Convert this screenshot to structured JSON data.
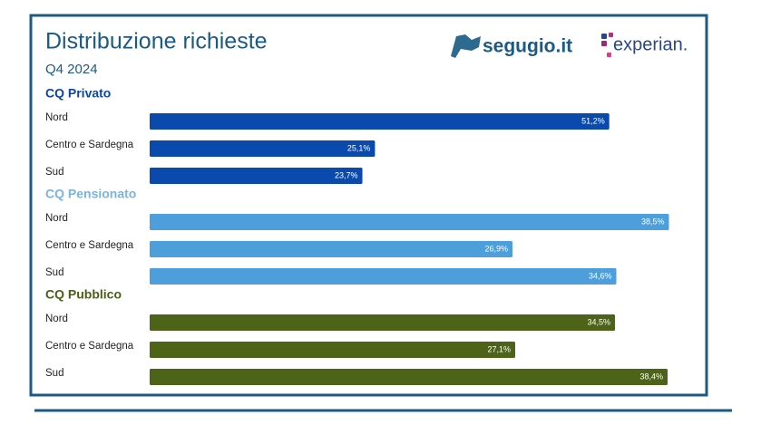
{
  "title": "Distribuzione richieste",
  "subtitle": "Q4 2024",
  "logos": [
    "segugio.it",
    "experian."
  ],
  "chart_data": [
    {
      "type": "bar",
      "title": "CQ Privato",
      "categories": [
        "Nord",
        "Centro e Sardegna",
        "Sud"
      ],
      "values": [
        51.2,
        25.1,
        23.7
      ],
      "value_labels": [
        "51,2%",
        "25,1%",
        "23,7%"
      ],
      "color": "#0b4aad",
      "title_color": "#0d47a1",
      "xlim": [
        0,
        58
      ]
    },
    {
      "type": "bar",
      "title": "CQ Pensionato",
      "categories": [
        "Nord",
        "Centro e Sardegna",
        "Sud"
      ],
      "values": [
        38.5,
        26.9,
        34.6
      ],
      "value_labels": [
        "38,5%",
        "26,9%",
        "34,6%"
      ],
      "color": "#4d9fdc",
      "title_color": "#7ab4e0",
      "xlim": [
        0,
        38.6
      ]
    },
    {
      "type": "bar",
      "title": "CQ Pubblico",
      "categories": [
        "Nord",
        "Centro e Sardegna",
        "Sud"
      ],
      "values": [
        34.5,
        27.1,
        38.4
      ],
      "value_labels": [
        "34,5%",
        "27,1%",
        "38,4%"
      ],
      "color": "#4c6318",
      "title_color": "#4a5e1a",
      "xlim": [
        0,
        38.6
      ]
    }
  ]
}
